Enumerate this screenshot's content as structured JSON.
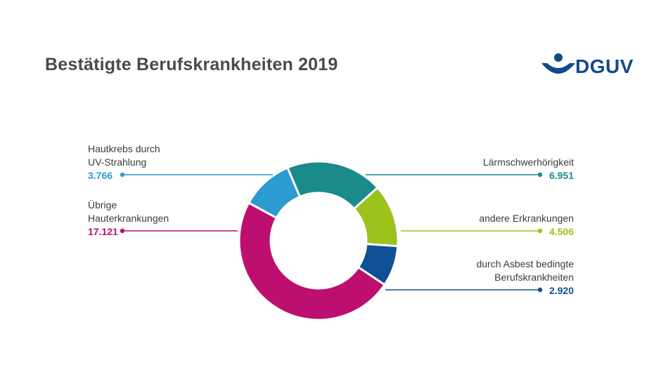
{
  "title": "Bestätigte Berufskrankheiten 2019",
  "logo": {
    "text": "DGUV",
    "color": "#124a8c"
  },
  "chart_data": {
    "type": "pie",
    "style": "donut",
    "title": "Bestätigte Berufskrankheiten 2019",
    "slices": [
      {
        "label_lines": [
          "Lärmschwerhörigkeit"
        ],
        "value_text": "6.951",
        "value": 6951,
        "color": "#1a8a8a"
      },
      {
        "label_lines": [
          "andere Erkrankungen"
        ],
        "value_text": "4.506",
        "value": 4506,
        "color": "#9cc21c"
      },
      {
        "label_lines": [
          "durch Asbest bedingte",
          "Berufskrankheiten"
        ],
        "value_text": "2.920",
        "value": 2920,
        "color": "#0f4f94"
      },
      {
        "label_lines": [
          "Übrige",
          "Hauterkrankungen"
        ],
        "value_text": "17.121",
        "value": 17121,
        "color": "#bd0f6f"
      },
      {
        "label_lines": [
          "Hautkrebs durch",
          "UV-Strahlung"
        ],
        "value_text": "3.766",
        "value": 3766,
        "color": "#2b9bd2"
      }
    ]
  }
}
